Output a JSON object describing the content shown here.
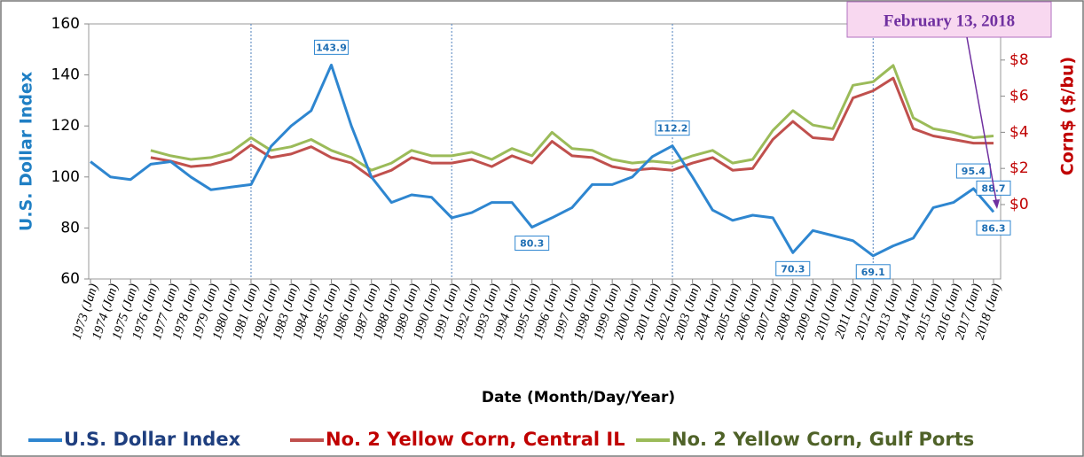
{
  "chart_data": {
    "type": "line",
    "xlabel": "Date (Month/Day/Year)",
    "ylabel": "U.S. Dollar Index",
    "y2label": "Corn$ ($/bu)",
    "ylabel_color": "#1f7fc4",
    "y2label_color": "#c00000",
    "categories": [
      "1973 (Jan)",
      "1974 (Jan)",
      "1975 (Jan)",
      "1976 (Jan)",
      "1977 (Jan)",
      "1978 (Jan)",
      "1979 (Jan)",
      "1980 (Jan)",
      "1981 (Jan)",
      "1982 (Jan)",
      "1983 (Jan)",
      "1984 (Jan)",
      "1985 (Jan)",
      "1986 (Jan)",
      "1987 (Jan)",
      "1988 (Jan)",
      "1989 (Jan)",
      "1990 (Jan)",
      "1991 (Jan)",
      "1992 (Jan)",
      "1993 (Jan)",
      "1994 (Jan)",
      "1995 (Jan)",
      "1996 (Jan)",
      "1997 (Jan)",
      "1998 (Jan)",
      "1999 (Jan)",
      "2000 (Jan)",
      "2001 (Jan)",
      "2002 (Jan)",
      "2003 (Jan)",
      "2004 (Jan)",
      "2005 (Jan)",
      "2006 (Jan)",
      "2007 (Jan)",
      "2008 (Jan)",
      "2009 (Jan)",
      "2010 (Jan)",
      "2011 (Jan)",
      "2012 (Jan)",
      "2013 (Jan)",
      "2014 (Jan)",
      "2015 (Jan)",
      "2016 (Jan)",
      "2017 (Jan)",
      "2018 (Jan)"
    ],
    "series": [
      {
        "name": "U.S. Dollar Index",
        "color": "#2e86d0",
        "text_color": "#1f3f7f",
        "axis": "y",
        "values": [
          106,
          100,
          99,
          105,
          106,
          100,
          95,
          96,
          97,
          112,
          120,
          126,
          143.9,
          120,
          100,
          90,
          93,
          92,
          84,
          86,
          90,
          90,
          80.3,
          84,
          88,
          97,
          97,
          100,
          108,
          112.2,
          100,
          87,
          83,
          85,
          84,
          70.3,
          79,
          77,
          75,
          69.1,
          73,
          76,
          88,
          90,
          95.4,
          86.3
        ]
      },
      {
        "name": "No. 2 Yellow Corn, Central IL",
        "color": "#c0504d",
        "text_color": "#c00000",
        "axis": "y2",
        "values": [
          null,
          null,
          null,
          2.6,
          2.4,
          2.1,
          2.2,
          2.5,
          3.3,
          2.6,
          2.8,
          3.2,
          2.6,
          2.3,
          1.5,
          1.9,
          2.6,
          2.3,
          2.3,
          2.5,
          2.1,
          2.7,
          2.3,
          3.5,
          2.7,
          2.6,
          2.1,
          1.9,
          2.0,
          1.9,
          2.3,
          2.6,
          1.9,
          2.0,
          3.6,
          4.6,
          3.7,
          3.6,
          5.9,
          6.3,
          7.0,
          4.2,
          3.8,
          3.6,
          3.4,
          3.4
        ]
      },
      {
        "name": "No. 2 Yellow Corn, Gulf Ports",
        "color": "#9bbb59",
        "text_color": "#4f6228",
        "axis": "y2",
        "values": [
          null,
          null,
          null,
          3.0,
          2.7,
          2.5,
          2.6,
          2.9,
          3.7,
          3.0,
          3.2,
          3.6,
          3.0,
          2.6,
          1.9,
          2.3,
          3.0,
          2.7,
          2.7,
          2.9,
          2.5,
          3.1,
          2.7,
          4.0,
          3.1,
          3.0,
          2.5,
          2.3,
          2.4,
          2.3,
          2.7,
          3.0,
          2.3,
          2.5,
          4.1,
          5.2,
          4.4,
          4.2,
          6.6,
          6.8,
          7.7,
          4.8,
          4.2,
          4.0,
          3.7,
          3.8
        ]
      }
    ],
    "ylim": [
      60,
      160
    ],
    "yticks": [
      60,
      80,
      100,
      120,
      140,
      160
    ],
    "y2lim": [
      -4.12,
      10
    ],
    "y2ticks": [
      {
        "value": 0,
        "label": "$0"
      },
      {
        "value": 2,
        "label": "$2"
      },
      {
        "value": 4,
        "label": "$4"
      },
      {
        "value": 6,
        "label": "$6"
      },
      {
        "value": 8,
        "label": "$8"
      }
    ],
    "vlines": [
      "1981 (Jan)",
      "1991 (Jan)",
      "2002 (Jan)",
      "2012 (Jan)"
    ],
    "annotations": [
      {
        "x": "1985 (Jan)",
        "value": 143.9
      },
      {
        "x": "1995 (Jan)",
        "value": 80.3
      },
      {
        "x": "2002 (Jan)",
        "value": 112.2
      },
      {
        "x": "2008 (Jan)",
        "value": 70.3
      },
      {
        "x": "2012 (Jan)",
        "value": 69.1
      },
      {
        "x": "2017 (Jan)",
        "value": 95.4
      },
      {
        "x": "2018 (Jan)",
        "value": 88.7
      },
      {
        "x": "2018 (Jan)",
        "value": 86.3
      }
    ],
    "callout": "February 13, 2018",
    "legend": "bottom"
  }
}
